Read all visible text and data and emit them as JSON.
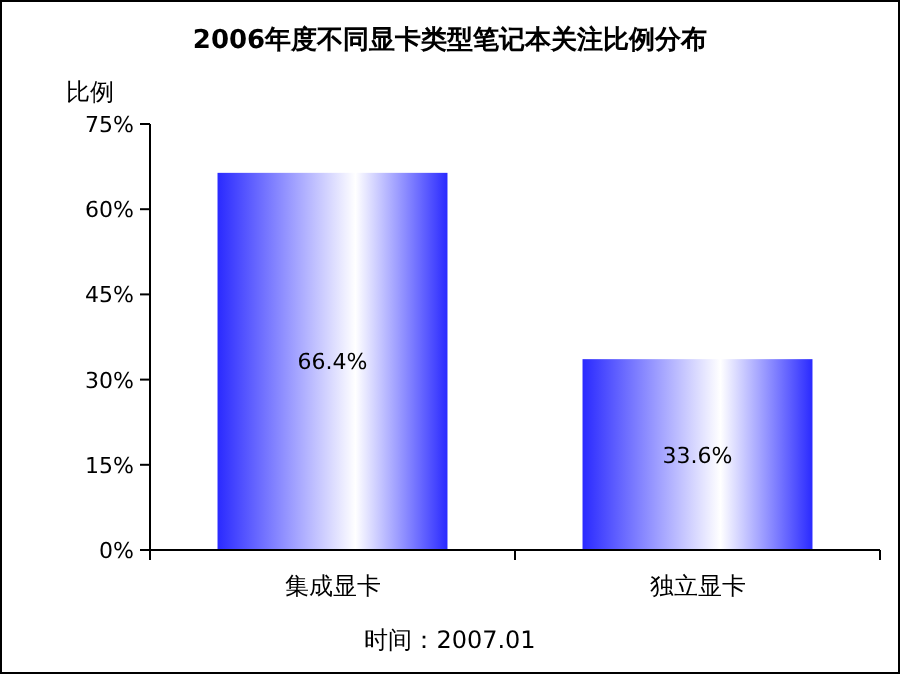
{
  "chart_data": {
    "type": "bar",
    "title": "2006年度不同显卡类型笔记本关注比例分布",
    "ylabel": "比例",
    "categories": [
      "集成显卡",
      "独立显卡"
    ],
    "values": [
      66.4,
      33.6
    ],
    "value_labels": [
      "66.4%",
      "33.6%"
    ],
    "color": "#2a2aff",
    "ylim": [
      0,
      75
    ],
    "yticks": [
      {
        "value": 0,
        "label": "0%"
      },
      {
        "value": 15,
        "label": "15%"
      },
      {
        "value": 30,
        "label": "30%"
      },
      {
        "value": 45,
        "label": "45%"
      },
      {
        "value": 60,
        "label": "60%"
      },
      {
        "value": 75,
        "label": "75%"
      }
    ],
    "annotations": [
      "时间：2007.01"
    ]
  }
}
